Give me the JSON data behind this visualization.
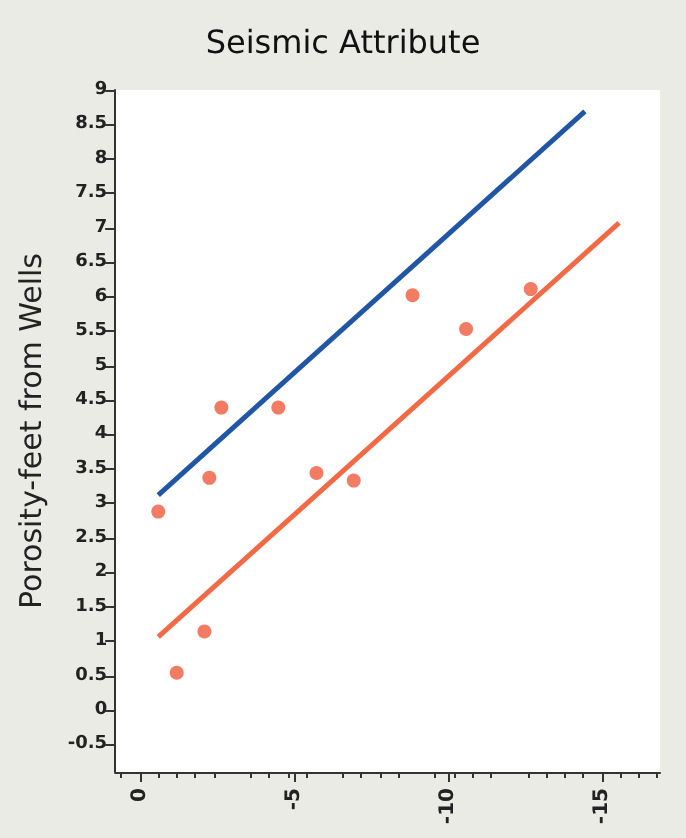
{
  "chart_data": {
    "type": "scatter",
    "title": "Seismic Attribute",
    "ylabel": "Porosity-feet from Wells",
    "xlim": [
      0.8,
      -16.9
    ],
    "xticks": [
      0,
      -5,
      -10,
      -15
    ],
    "ylim": [
      -0.9,
      9
    ],
    "yticks": [
      -0.5,
      0,
      0.5,
      1,
      1.5,
      2,
      2.5,
      3,
      3.5,
      4,
      4.5,
      5,
      5.5,
      6,
      6.5,
      7,
      7.5,
      8,
      8.5,
      9
    ],
    "grid": false,
    "series": [
      {
        "type": "line",
        "marker": "none",
        "color": "#2156a5",
        "x": [
          -0.6,
          -14.46
        ],
        "values": [
          3.12,
          8.69
        ]
      },
      {
        "type": "line",
        "marker": "none",
        "color": "#f26a45",
        "x": [
          -0.6,
          -15.57
        ],
        "values": [
          1.06,
          7.07
        ]
      },
      {
        "marker": "circle",
        "color": "#ee5a3c",
        "x": [
          -0.6,
          -1.2,
          -2.1,
          -2.26,
          -2.65,
          -4.5,
          -5.74,
          -6.95,
          -8.86,
          -10.6,
          -12.7
        ],
        "values": [
          2.88,
          0.54,
          1.14,
          3.37,
          4.39,
          4.39,
          3.44,
          3.33,
          6.02,
          5.53,
          6.11
        ]
      }
    ]
  }
}
